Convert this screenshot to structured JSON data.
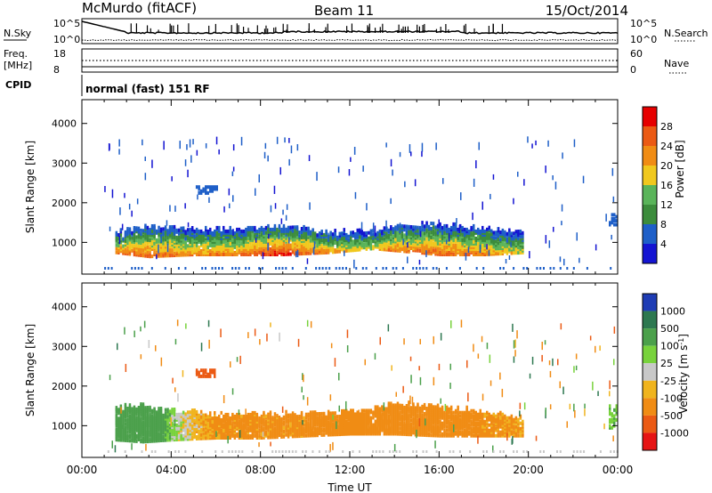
{
  "header": {
    "station": "McMurdo (fitACF)",
    "beam": "Beam 11",
    "date": "15/Oct/2014"
  },
  "strip_labels": {
    "nsky": "N.Sky",
    "nsearch": "N.Search",
    "freq_line1": "Freq.",
    "freq_line2": "[MHz]",
    "nave": "Nave",
    "cpid": "CPID",
    "nsky_ticks": [
      "10^5",
      "10^0"
    ],
    "nsearch_ticks": [
      "10^5",
      "10^0"
    ],
    "freq_ticks": [
      "18",
      "8"
    ],
    "nave_ticks": [
      "60",
      "0"
    ],
    "cpid_text": "normal (fast) 151 RF"
  },
  "colors": {
    "power": [
      "#1414d2",
      "#1e5fc8",
      "#3c8c3c",
      "#5ab45a",
      "#f0c81e",
      "#f08c14",
      "#eb5a14",
      "#e60000"
    ],
    "velocity": [
      "#1e3cb4",
      "#2d7850",
      "#4ba04b",
      "#78d23c",
      "#c8c8c8",
      "#f0b41e",
      "#f08c14",
      "#eb5a14",
      "#e61414"
    ]
  },
  "chart_data": [
    {
      "type": "heatmap",
      "name": "power",
      "xlabel": "",
      "ylabel": "Slant Range [km]",
      "xlim": [
        "00:00",
        "24:00"
      ],
      "ylim": [
        200,
        4600
      ],
      "yticks": [
        "1000",
        "2000",
        "3000",
        "4000"
      ],
      "colorbar": {
        "label": "Power [dB]",
        "range": [
          0,
          32
        ],
        "ticks": [
          "4",
          "8",
          "12",
          "16",
          "20",
          "24",
          "28"
        ]
      },
      "echo_band": {
        "x_hours": [
          1.5,
          3,
          5,
          7,
          9,
          11,
          13,
          14,
          16,
          18,
          19.8
        ],
        "lower_km": [
          700,
          600,
          650,
          650,
          650,
          700,
          800,
          750,
          650,
          650,
          700
        ],
        "upper_km": [
          1200,
          1350,
          1300,
          1300,
          1350,
          1200,
          1250,
          1400,
          1400,
          1300,
          1200
        ],
        "peak_dB": [
          24,
          26,
          22,
          24,
          30,
          22,
          18,
          24,
          26,
          24,
          16
        ]
      },
      "patches": [
        {
          "x_hours": [
            5.1,
            6.0
          ],
          "range_km": [
            2200,
            2400
          ],
          "dB": 6
        },
        {
          "x_hours": [
            23.6,
            24.0
          ],
          "range_km": [
            1400,
            1700
          ],
          "dB": 6
        }
      ]
    },
    {
      "type": "heatmap",
      "name": "velocity",
      "xlabel": "Time UT",
      "ylabel": "Slant Range [km]",
      "xlim": [
        "00:00",
        "24:00"
      ],
      "ylim": [
        200,
        4600
      ],
      "xticks": [
        "00:00",
        "04:00",
        "08:00",
        "12:00",
        "16:00",
        "20:00",
        "00:00"
      ],
      "yticks": [
        "1000",
        "2000",
        "3000",
        "4000"
      ],
      "colorbar": {
        "label": "Velocity [m s^-1]",
        "ticks": [
          "1000",
          "500",
          "100",
          "25",
          "-25",
          "-100",
          "-500",
          "-1000"
        ]
      },
      "echo_band": {
        "x_hours": [
          1.5,
          2.7,
          4,
          6,
          8,
          10,
          12,
          14,
          16,
          18,
          19.8
        ],
        "lower_km": [
          600,
          550,
          600,
          650,
          650,
          700,
          750,
          750,
          700,
          700,
          700
        ],
        "upper_km": [
          1400,
          1450,
          1350,
          1250,
          1250,
          1250,
          1300,
          1500,
          1450,
          1300,
          1150
        ],
        "velocity_ms": [
          300,
          400,
          50,
          -150,
          -150,
          -150,
          -200,
          -200,
          -200,
          -150,
          -100
        ]
      },
      "patches": [
        {
          "x_hours": [
            5.1,
            6.0
          ],
          "range_km": [
            2200,
            2400
          ],
          "velocity_ms": -600
        },
        {
          "x_hours": [
            23.6,
            24.0
          ],
          "range_km": [
            900,
            1500
          ],
          "velocity_ms": 80
        }
      ]
    }
  ]
}
